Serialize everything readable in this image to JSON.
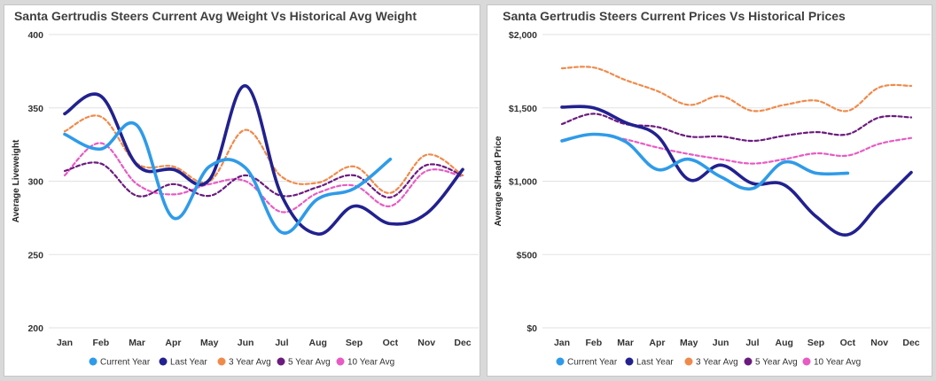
{
  "legend_labels": [
    "Current Year",
    "Last Year",
    "3 Year Avg",
    "5 Year Avg",
    "10 Year Avg"
  ],
  "series_styles": [
    {
      "color": "#2f9be8",
      "width": 3.6,
      "dash": ""
    },
    {
      "color": "#22218f",
      "width": 3.6,
      "dash": ""
    },
    {
      "color": "#f08a4b",
      "width": 2.2,
      "dash": "4 3"
    },
    {
      "color": "#6b1b7e",
      "width": 2.2,
      "dash": "4 3"
    },
    {
      "color": "#e85bc4",
      "width": 2.2,
      "dash": "4 3"
    }
  ],
  "chart_data": [
    {
      "type": "line",
      "title": "Santa Gertrudis Steers Current Avg Weight Vs Historical Avg Weight",
      "xlabel": "",
      "ylabel": "Average Liveweight",
      "categories": [
        "Jan",
        "Feb",
        "Mar",
        "Apr",
        "May",
        "Jun",
        "Jul",
        "Aug",
        "Sep",
        "Oct",
        "Nov",
        "Dec"
      ],
      "ylim": [
        200,
        400
      ],
      "yticks": [
        200,
        250,
        300,
        350,
        400
      ],
      "ytick_labels": [
        "200",
        "250",
        "300",
        "350",
        "400"
      ],
      "grid": "horizontal",
      "legend": "bottom",
      "series": [
        {
          "name": "Current Year",
          "values": [
            332,
            322,
            338,
            275,
            310,
            309,
            265,
            288,
            295,
            315,
            null,
            null
          ]
        },
        {
          "name": "Last Year",
          "values": [
            346,
            358,
            311,
            308,
            301,
            365,
            290,
            264,
            283,
            271,
            278,
            308
          ]
        },
        {
          "name": "3 Year Avg",
          "values": [
            334,
            344,
            312,
            310,
            300,
            335,
            303,
            299,
            310,
            292,
            318,
            304
          ]
        },
        {
          "name": "5 Year Avg",
          "values": [
            307,
            312,
            290,
            298,
            290,
            304,
            290,
            296,
            304,
            289,
            311,
            304
          ]
        },
        {
          "name": "10 Year Avg",
          "values": [
            304,
            326,
            298,
            291,
            298,
            300,
            279,
            292,
            297,
            283,
            307,
            303
          ]
        }
      ]
    },
    {
      "type": "line",
      "title": "Santa Gertrudis Steers Current Prices Vs Historical Prices",
      "xlabel": "",
      "ylabel": "Average $/Head Price",
      "categories": [
        "Jan",
        "Feb",
        "Mar",
        "Apr",
        "May",
        "Jun",
        "Jul",
        "Aug",
        "Sep",
        "Oct",
        "Nov",
        "Dec"
      ],
      "ylim": [
        0,
        2000
      ],
      "yticks": [
        0,
        500,
        1000,
        1500,
        2000
      ],
      "ytick_labels": [
        "$0",
        "$500",
        "$1,000",
        "$1,500",
        "$2,000"
      ],
      "grid": "horizontal",
      "legend": "bottom",
      "series": [
        {
          "name": "Current Year",
          "values": [
            1275,
            1320,
            1270,
            1080,
            1150,
            1030,
            950,
            1130,
            1055,
            1055,
            null,
            null
          ]
        },
        {
          "name": "Last Year",
          "values": [
            1505,
            1500,
            1400,
            1310,
            1010,
            1110,
            985,
            975,
            760,
            635,
            845,
            1060
          ]
        },
        {
          "name": "3 Year Avg",
          "values": [
            1770,
            1775,
            1690,
            1615,
            1520,
            1580,
            1480,
            1520,
            1550,
            1480,
            1640,
            1650
          ]
        },
        {
          "name": "5 Year Avg",
          "values": [
            1390,
            1460,
            1390,
            1370,
            1305,
            1305,
            1275,
            1310,
            1335,
            1320,
            1435,
            1435
          ]
        },
        {
          "name": "10 Year Avg",
          "values": [
            1280,
            1320,
            1285,
            1230,
            1185,
            1150,
            1120,
            1150,
            1190,
            1175,
            1255,
            1295
          ]
        }
      ]
    }
  ]
}
